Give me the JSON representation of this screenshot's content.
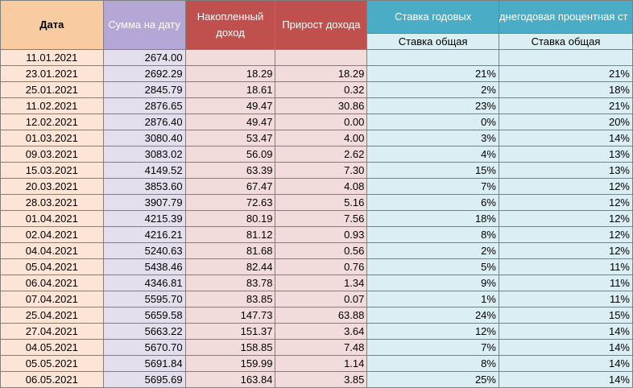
{
  "headers": {
    "date": "Дата",
    "sum": "Сумма на дату",
    "accumulated": "Накопленный доход",
    "increase": "Прирост дохода",
    "annual_rate": "Ставка годовых",
    "avg_rate": "днегодовая процентная ст",
    "rate_sub": "Ставка общая",
    "avg_sub": "Ставка общая"
  },
  "rows": [
    {
      "date": "11.01.2021",
      "sum": "2674.00",
      "acc": "",
      "inc": "",
      "rate": "",
      "avg": ""
    },
    {
      "date": "23.01.2021",
      "sum": "2692.29",
      "acc": "18.29",
      "inc": "18.29",
      "rate": "21%",
      "avg": "21%"
    },
    {
      "date": "25.01.2021",
      "sum": "2845.79",
      "acc": "18.61",
      "inc": "0.32",
      "rate": "2%",
      "avg": "18%"
    },
    {
      "date": "11.02.2021",
      "sum": "2876.65",
      "acc": "49.47",
      "inc": "30.86",
      "rate": "23%",
      "avg": "21%"
    },
    {
      "date": "12.02.2021",
      "sum": "2876.40",
      "acc": "49.47",
      "inc": "0.00",
      "rate": "0%",
      "avg": "20%"
    },
    {
      "date": "01.03.2021",
      "sum": "3080.40",
      "acc": "53.47",
      "inc": "4.00",
      "rate": "3%",
      "avg": "14%"
    },
    {
      "date": "09.03.2021",
      "sum": "3083.02",
      "acc": "56.09",
      "inc": "2.62",
      "rate": "4%",
      "avg": "13%"
    },
    {
      "date": "15.03.2021",
      "sum": "4149.52",
      "acc": "63.39",
      "inc": "7.30",
      "rate": "15%",
      "avg": "13%"
    },
    {
      "date": "20.03.2021",
      "sum": "3853.60",
      "acc": "67.47",
      "inc": "4.08",
      "rate": "7%",
      "avg": "12%"
    },
    {
      "date": "28.03.2021",
      "sum": "3907.79",
      "acc": "72.63",
      "inc": "5.16",
      "rate": "6%",
      "avg": "12%"
    },
    {
      "date": "01.04.2021",
      "sum": "4215.39",
      "acc": "80.19",
      "inc": "7.56",
      "rate": "18%",
      "avg": "12%"
    },
    {
      "date": "02.04.2021",
      "sum": "4216.21",
      "acc": "81.12",
      "inc": "0.93",
      "rate": "8%",
      "avg": "12%"
    },
    {
      "date": "04.04.2021",
      "sum": "5240.63",
      "acc": "81.68",
      "inc": "0.56",
      "rate": "2%",
      "avg": "12%"
    },
    {
      "date": "05.04.2021",
      "sum": "5438.46",
      "acc": "82.44",
      "inc": "0.76",
      "rate": "5%",
      "avg": "11%"
    },
    {
      "date": "06.04.2021",
      "sum": "4346.81",
      "acc": "83.78",
      "inc": "1.34",
      "rate": "9%",
      "avg": "11%"
    },
    {
      "date": "07.04.2021",
      "sum": "5595.70",
      "acc": "83.85",
      "inc": "0.07",
      "rate": "1%",
      "avg": "11%"
    },
    {
      "date": "25.04.2021",
      "sum": "5659.58",
      "acc": "147.73",
      "inc": "63.88",
      "rate": "24%",
      "avg": "15%"
    },
    {
      "date": "27.04.2021",
      "sum": "5663.22",
      "acc": "151.37",
      "inc": "3.64",
      "rate": "12%",
      "avg": "14%"
    },
    {
      "date": "04.05.2021",
      "sum": "5670.70",
      "acc": "158.85",
      "inc": "7.48",
      "rate": "7%",
      "avg": "14%"
    },
    {
      "date": "05.05.2021",
      "sum": "5691.84",
      "acc": "159.99",
      "inc": "1.14",
      "rate": "8%",
      "avg": "14%"
    },
    {
      "date": "06.05.2021",
      "sum": "5695.69",
      "acc": "163.84",
      "inc": "3.85",
      "rate": "25%",
      "avg": "14%"
    }
  ]
}
